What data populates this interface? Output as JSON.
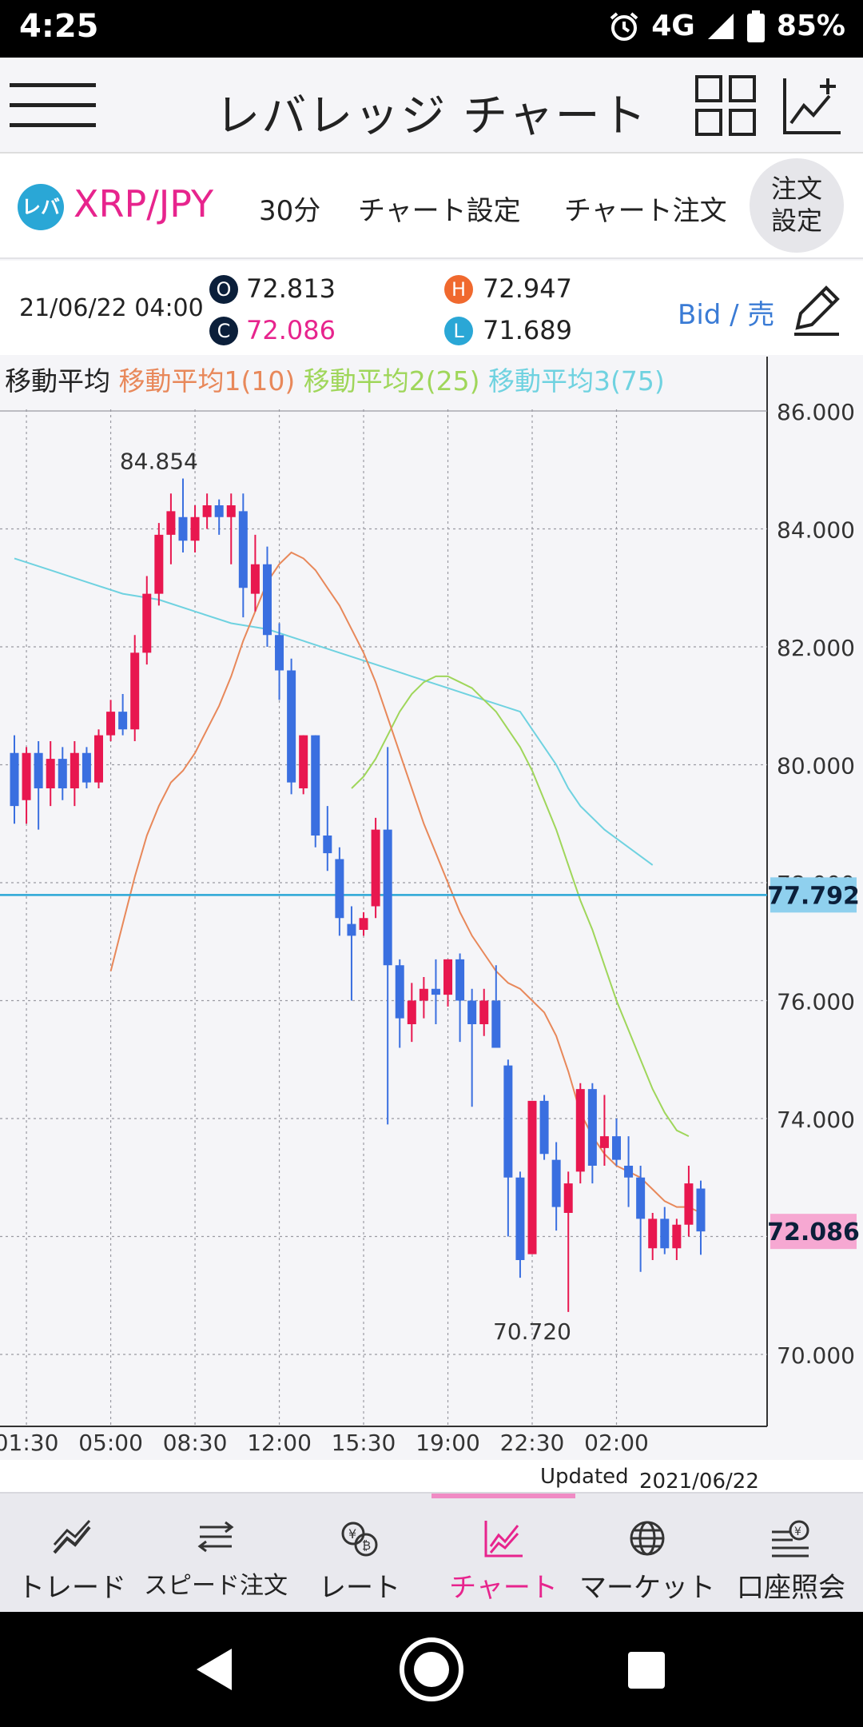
{
  "status_bar": {
    "time": "4:25",
    "network": "4G",
    "battery": "85%"
  },
  "header": {
    "title": "レバレッジ チャート"
  },
  "subbar": {
    "pair_logo": "レバ",
    "pair": "XRP/JPY",
    "interval": "30分",
    "chart_settings": "チャート設定",
    "chart_order": "チャート注文",
    "order_settings_line1": "注文",
    "order_settings_line2": "設定"
  },
  "ohlc": {
    "date": "21/06/22 04:00",
    "o_label": "O",
    "o_value": "72.813",
    "c_label": "C",
    "c_value": "72.086",
    "h_label": "H",
    "h_value": "72.947",
    "l_label": "L",
    "l_value": "71.689",
    "bid_sell": "Bid / 売",
    "colors": {
      "o": "#0b1f3a",
      "c": "#0b1f3a",
      "h": "#f0692e",
      "l": "#2aa7d6",
      "c_text": "#e7248d"
    }
  },
  "chart_data": {
    "type": "candlestick",
    "legend": {
      "title": "移動平均",
      "ma1": "移動平均1(10)",
      "ma2": "移動平均2(25)",
      "ma3": "移動平均3(75)"
    },
    "colors": {
      "up": "#e8174f",
      "down": "#3a6fe0",
      "ma1": "#e8885a",
      "ma2": "#9fd65a",
      "ma3": "#6fd2e0",
      "current": "#e7248d",
      "bid_line": "#2aa7d6"
    },
    "ylim": [
      68.3,
      86.9
    ],
    "y_ticks": [
      "86.000",
      "84.000",
      "82.000",
      "80.000",
      "78.000",
      "76.000",
      "74.000",
      "72.000",
      "70.000"
    ],
    "y_tick_values": [
      86,
      84,
      82,
      80,
      78,
      76,
      74,
      72,
      70
    ],
    "x_ticks": [
      "01:30",
      "05:00",
      "08:30",
      "12:00",
      "15:30",
      "19:00",
      "22:30",
      "02:00"
    ],
    "x_tick_index": [
      1,
      8,
      15,
      22,
      29,
      36,
      43,
      50
    ],
    "high_annotation": {
      "text": "84.854",
      "index": 12,
      "value": 84.854
    },
    "low_annotation": {
      "text": "70.720",
      "index": 43,
      "value": 70.72
    },
    "bid_line": {
      "value": 77.792,
      "label": "77.792"
    },
    "current": {
      "value": 72.086,
      "label": "72.086"
    },
    "candles": [
      [
        80.2,
        80.5,
        79.0,
        79.3
      ],
      [
        79.4,
        80.3,
        79.0,
        80.2
      ],
      [
        80.2,
        80.4,
        78.9,
        79.6
      ],
      [
        79.6,
        80.4,
        79.3,
        80.1
      ],
      [
        80.1,
        80.3,
        79.4,
        79.6
      ],
      [
        79.6,
        80.4,
        79.3,
        80.2
      ],
      [
        80.2,
        80.3,
        79.6,
        79.7
      ],
      [
        79.7,
        80.6,
        79.6,
        80.5
      ],
      [
        80.5,
        81.1,
        80.4,
        80.9
      ],
      [
        80.9,
        81.2,
        80.5,
        80.6
      ],
      [
        80.6,
        82.2,
        80.4,
        81.9
      ],
      [
        81.9,
        83.2,
        81.7,
        82.9
      ],
      [
        82.9,
        84.1,
        82.7,
        83.9
      ],
      [
        83.9,
        84.6,
        83.4,
        84.3
      ],
      [
        84.2,
        84.854,
        83.6,
        83.8
      ],
      [
        83.8,
        84.4,
        83.6,
        84.2
      ],
      [
        84.2,
        84.6,
        84.0,
        84.4
      ],
      [
        84.4,
        84.5,
        83.9,
        84.2
      ],
      [
        84.2,
        84.6,
        83.4,
        84.4
      ],
      [
        84.3,
        84.6,
        82.5,
        83.0
      ],
      [
        82.9,
        83.9,
        82.6,
        83.4
      ],
      [
        83.4,
        83.7,
        82.0,
        82.2
      ],
      [
        82.2,
        82.4,
        81.1,
        81.6
      ],
      [
        81.6,
        81.8,
        79.5,
        79.7
      ],
      [
        79.6,
        80.5,
        79.5,
        80.5
      ],
      [
        80.5,
        80.5,
        78.6,
        78.8
      ],
      [
        78.8,
        79.3,
        78.2,
        78.5
      ],
      [
        78.4,
        78.6,
        77.1,
        77.4
      ],
      [
        77.3,
        77.6,
        76.0,
        77.1
      ],
      [
        77.2,
        77.5,
        77.1,
        77.4
      ],
      [
        77.6,
        79.1,
        77.4,
        78.9
      ],
      [
        78.9,
        80.3,
        73.9,
        76.6
      ],
      [
        76.6,
        76.7,
        75.2,
        75.7
      ],
      [
        75.6,
        76.3,
        75.3,
        76.0
      ],
      [
        76.0,
        76.4,
        75.7,
        76.2
      ],
      [
        76.2,
        76.7,
        75.6,
        76.1
      ],
      [
        76.1,
        76.7,
        75.9,
        76.7
      ],
      [
        76.7,
        76.8,
        75.3,
        76.0
      ],
      [
        76.0,
        76.2,
        74.2,
        75.6
      ],
      [
        75.6,
        76.2,
        75.4,
        76.0
      ],
      [
        76.0,
        76.6,
        75.2,
        75.2
      ],
      [
        74.9,
        75.0,
        72.0,
        73.0
      ],
      [
        73.0,
        73.1,
        71.3,
        71.6
      ],
      [
        71.7,
        74.3,
        71.7,
        74.3
      ],
      [
        74.3,
        74.4,
        73.3,
        73.4
      ],
      [
        73.3,
        73.6,
        72.1,
        72.5
      ],
      [
        72.4,
        73.1,
        70.72,
        72.9
      ],
      [
        73.1,
        74.6,
        72.9,
        74.5
      ],
      [
        74.5,
        74.6,
        72.9,
        73.2
      ],
      [
        73.5,
        74.4,
        73.2,
        73.7
      ],
      [
        73.7,
        74.0,
        73.2,
        73.3
      ],
      [
        73.2,
        73.7,
        72.5,
        73.0
      ],
      [
        73.0,
        73.2,
        71.4,
        72.3
      ],
      [
        71.8,
        72.4,
        71.6,
        72.3
      ],
      [
        72.3,
        72.5,
        71.7,
        71.8
      ],
      [
        71.8,
        72.3,
        71.6,
        72.2
      ],
      [
        72.2,
        73.2,
        72.0,
        72.9
      ],
      [
        72.813,
        72.947,
        71.689,
        72.086
      ]
    ],
    "ma1": [
      76.5,
      77.3,
      78.1,
      78.8,
      79.3,
      79.7,
      79.9,
      80.2,
      80.6,
      81.0,
      81.5,
      82.1,
      82.6,
      83.1,
      83.4,
      83.6,
      83.5,
      83.3,
      83.0,
      82.7,
      82.3,
      81.9,
      81.4,
      80.8,
      80.2,
      79.6,
      79.0,
      78.5,
      78.0,
      77.5,
      77.1,
      76.8,
      76.5,
      76.3,
      76.2,
      76.0,
      75.8,
      75.4,
      74.8,
      74.1,
      73.7,
      73.4,
      73.2,
      73.1,
      73.0,
      72.8,
      72.6,
      72.5,
      72.5,
      72.4
    ],
    "ma1_start": 8,
    "ma2": [
      79.6,
      79.8,
      80.1,
      80.5,
      80.9,
      81.2,
      81.4,
      81.5,
      81.5,
      81.4,
      81.3,
      81.1,
      80.9,
      80.6,
      80.3,
      79.9,
      79.4,
      78.9,
      78.3,
      77.7,
      77.2,
      76.6,
      76.0,
      75.5,
      75.0,
      74.5,
      74.1,
      73.8,
      73.7
    ],
    "ma2_start": 28,
    "ma3": [
      83.5,
      83.3,
      83.1,
      82.9,
      82.8,
      82.6,
      82.4,
      82.3,
      82.1,
      81.9,
      81.7,
      81.5,
      81.3,
      81.1,
      80.9,
      80.6,
      80.3,
      80.0,
      79.6,
      79.3,
      78.9,
      78.6,
      78.3
    ],
    "ma3_start": 0,
    "ma3_index": [
      0,
      3,
      6,
      9,
      12,
      15,
      18,
      21,
      24,
      27,
      30,
      33,
      36,
      39,
      42,
      43,
      44,
      45,
      46,
      47,
      49,
      51,
      53
    ]
  },
  "updated": {
    "label": "Updated",
    "datetime": "2021/06/22　04:25:32"
  },
  "tabs": [
    {
      "label": "トレード",
      "icon": "trend-icon"
    },
    {
      "label": "スピード注文",
      "icon": "speed-order-icon"
    },
    {
      "label": "レート",
      "icon": "rate-icon"
    },
    {
      "label": "チャート",
      "icon": "chart-icon",
      "active": true
    },
    {
      "label": "マーケット",
      "icon": "globe-icon"
    },
    {
      "label": "口座照会",
      "icon": "account-icon"
    }
  ]
}
